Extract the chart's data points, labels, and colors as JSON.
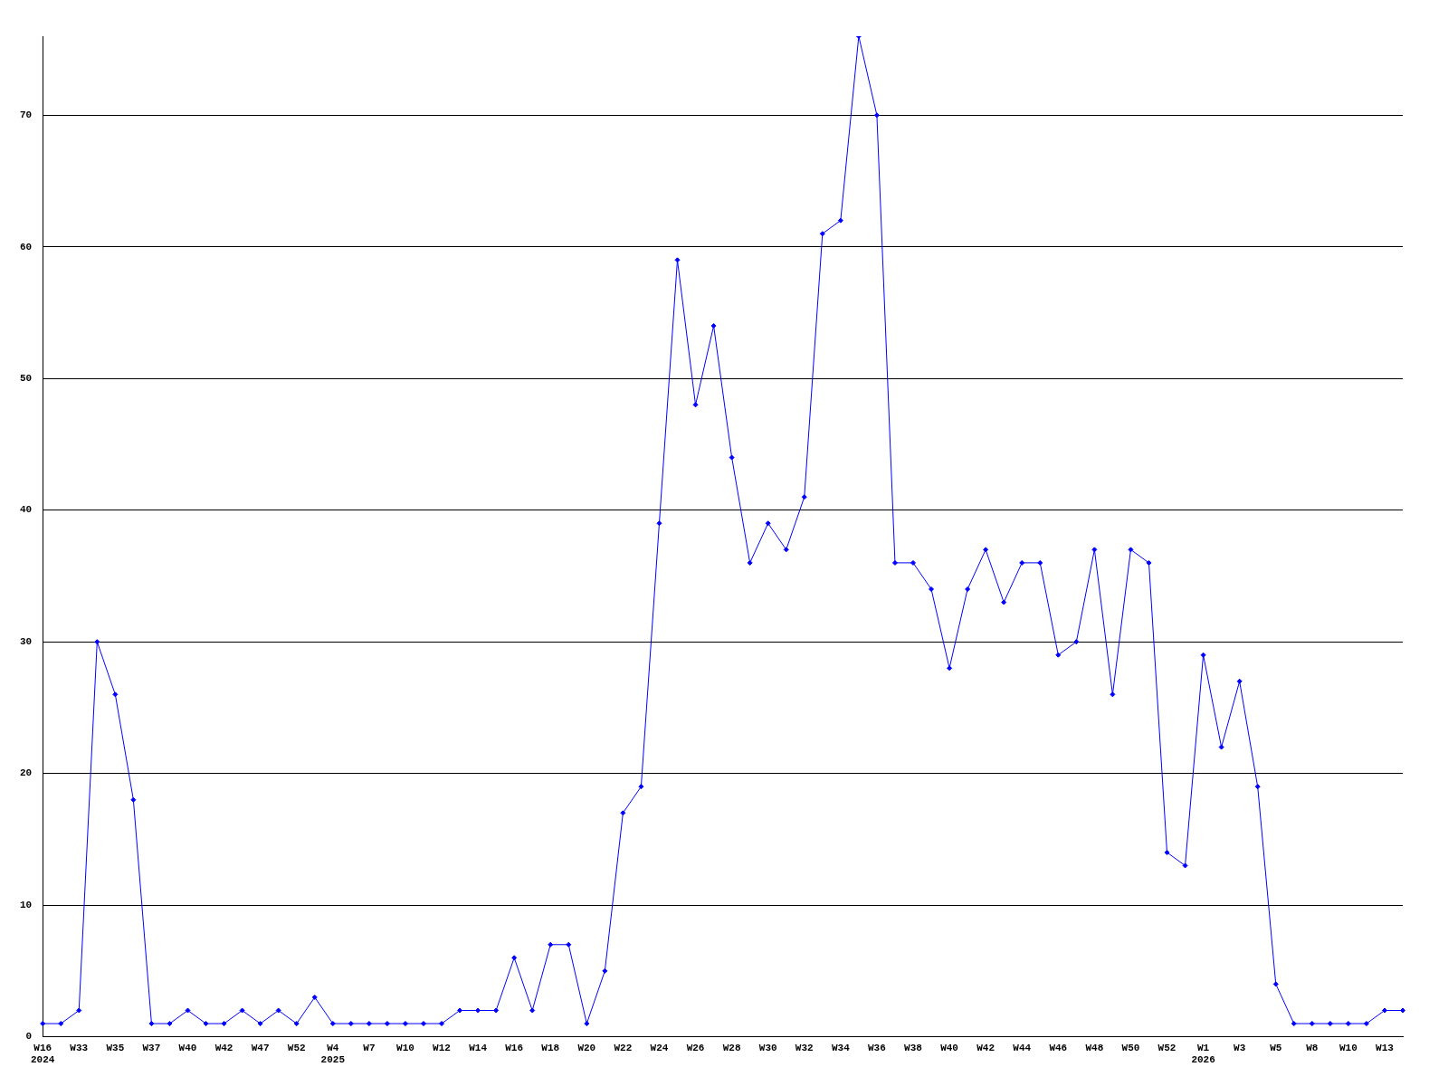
{
  "chart_data": {
    "type": "line",
    "categories": [
      "W16\n2024",
      null,
      "W33",
      null,
      "W35",
      null,
      "W37",
      null,
      "W40",
      null,
      "W42",
      null,
      "W47",
      null,
      "W52",
      null,
      "W4\n2025",
      null,
      "W7",
      null,
      "W10",
      null,
      "W12",
      null,
      "W14",
      null,
      "W16",
      null,
      "W18",
      null,
      "W20",
      null,
      "W22",
      null,
      "W24",
      null,
      "W26",
      null,
      "W28",
      null,
      "W30",
      null,
      "W32",
      null,
      "W34",
      null,
      "W36",
      null,
      "W38",
      null,
      "W40",
      null,
      "W42",
      null,
      "W44",
      null,
      "W46",
      null,
      "W48",
      null,
      "W50",
      null,
      "W52",
      null,
      "W1\n2026",
      null,
      "W3",
      null,
      "W5",
      null,
      "W8",
      null,
      "W10",
      null,
      "W13",
      null
    ],
    "series": [
      {
        "color": "#0000ff",
        "values": [
          1,
          1,
          2,
          30,
          26,
          18,
          1,
          1,
          2,
          1,
          1,
          2,
          1,
          2,
          1,
          3,
          1,
          1,
          1,
          1,
          1,
          1,
          1,
          2,
          2,
          2,
          6,
          2,
          7,
          7,
          1,
          5,
          17,
          19,
          39,
          59,
          48,
          54,
          44,
          36,
          39,
          37,
          41,
          61,
          62,
          76,
          70,
          36,
          36,
          34,
          28,
          34,
          37,
          33,
          36,
          36,
          29,
          30,
          37,
          26,
          37,
          36,
          14,
          13,
          29,
          22,
          27,
          19,
          4,
          1,
          1,
          1,
          1,
          1,
          2,
          2
        ]
      }
    ],
    "ylim": [
      0,
      76
    ],
    "yticks": [
      0,
      10,
      20,
      30,
      40,
      50,
      60,
      70
    ],
    "grid": "y",
    "legend": false,
    "marker": "diamond",
    "line_style": "solid"
  }
}
